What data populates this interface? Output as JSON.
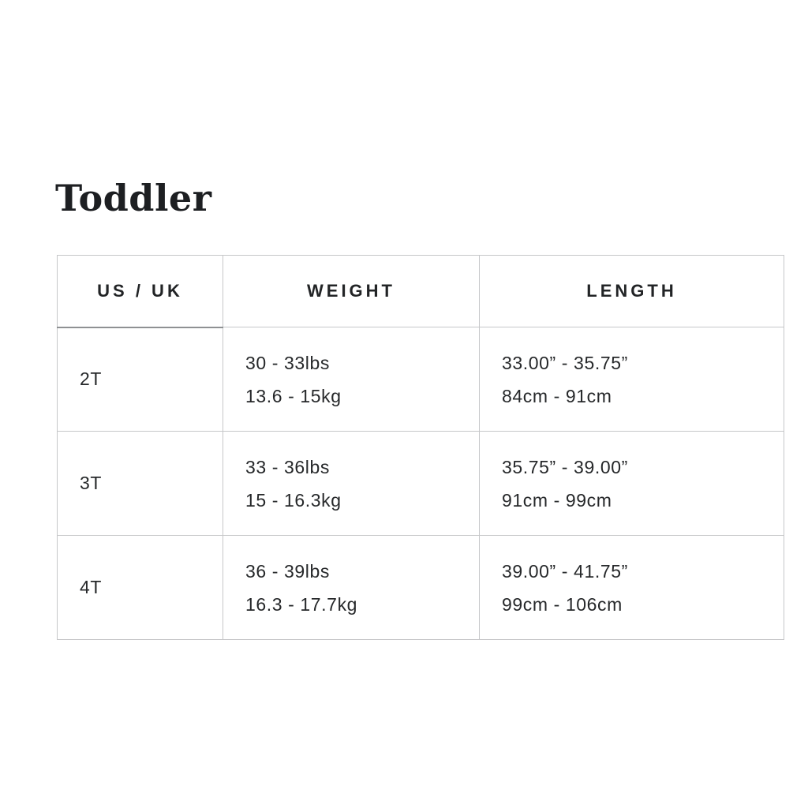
{
  "page_title": "Toddler",
  "table": {
    "headers": [
      "US / UK",
      "WEIGHT",
      "LENGTH"
    ],
    "rows": [
      {
        "size": "2T",
        "weight": [
          "30 - 33lbs",
          "13.6 - 15kg"
        ],
        "length": [
          "33.00” - 35.75”",
          "84cm - 91cm"
        ]
      },
      {
        "size": "3T",
        "weight": [
          "33 - 36lbs",
          "15 - 16.3kg"
        ],
        "length": [
          "35.75” - 39.00”",
          "91cm - 99cm"
        ]
      },
      {
        "size": "4T",
        "weight": [
          "36 - 39lbs",
          "16.3 - 17.7kg"
        ],
        "length": [
          "39.00” - 41.75”",
          "99cm - 106cm"
        ]
      }
    ]
  },
  "colors": {
    "text": "#26282a",
    "border": "#c6c7c9",
    "header_accent_border": "#8f9193",
    "background": "#ffffff"
  }
}
